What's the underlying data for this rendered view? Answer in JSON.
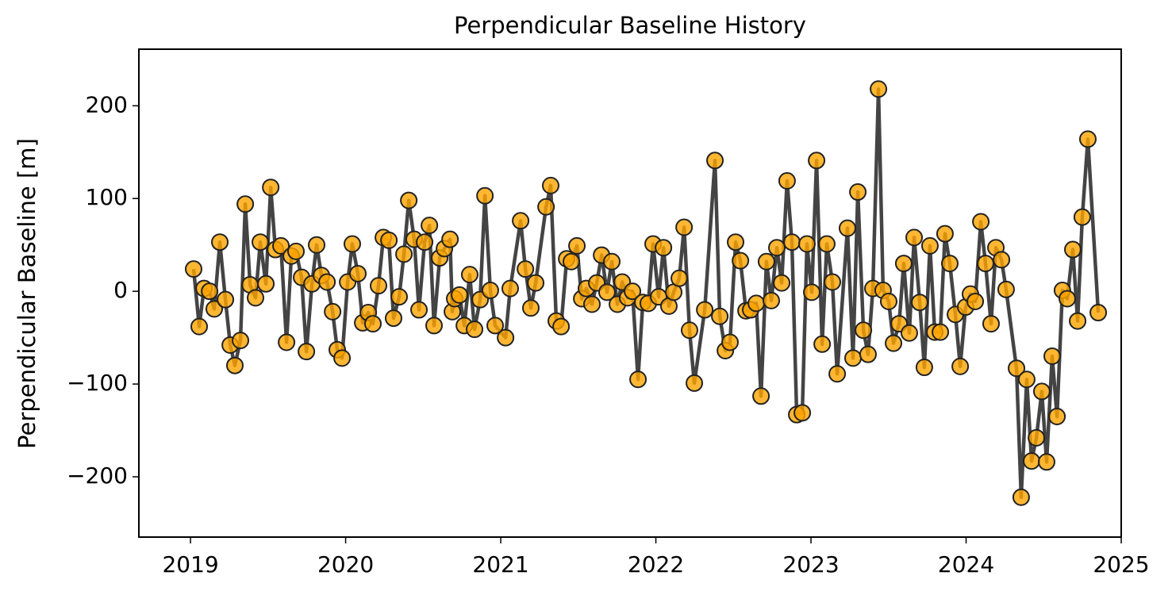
{
  "chart_data": {
    "type": "line",
    "title": "Perpendicular Baseline History",
    "ylabel": "Perpendicular Baseline [m]",
    "x": [
      2019.02,
      2019.056,
      2019.087,
      2019.123,
      2019.153,
      2019.189,
      2019.225,
      2019.256,
      2019.286,
      2019.322,
      2019.353,
      2019.384,
      2019.419,
      2019.45,
      2019.486,
      2019.517,
      2019.547,
      2019.583,
      2019.619,
      2019.65,
      2019.68,
      2019.716,
      2019.747,
      2019.783,
      2019.813,
      2019.844,
      2019.88,
      2019.916,
      2019.946,
      2019.977,
      2020.013,
      2020.043,
      2020.079,
      2020.11,
      2020.146,
      2020.176,
      2020.212,
      2020.243,
      2020.279,
      2020.309,
      2020.345,
      2020.376,
      2020.407,
      2020.442,
      2020.473,
      2020.509,
      2020.54,
      2020.57,
      2020.606,
      2020.637,
      2020.673,
      2020.688,
      2020.703,
      2020.734,
      2020.765,
      2020.8,
      2020.831,
      2020.867,
      2020.898,
      2020.933,
      2020.964,
      2021.031,
      2021.061,
      2021.128,
      2021.159,
      2021.194,
      2021.225,
      2021.292,
      2021.322,
      2021.358,
      2021.389,
      2021.425,
      2021.455,
      2021.491,
      2021.522,
      2021.552,
      2021.588,
      2021.619,
      2021.65,
      2021.685,
      2021.716,
      2021.752,
      2021.783,
      2021.818,
      2021.849,
      2021.885,
      2021.916,
      2021.951,
      2021.982,
      2022.018,
      2022.049,
      2022.084,
      2022.115,
      2022.151,
      2022.182,
      2022.217,
      2022.248,
      2022.315,
      2022.381,
      2022.412,
      2022.448,
      2022.478,
      2022.514,
      2022.545,
      2022.581,
      2022.611,
      2022.647,
      2022.678,
      2022.713,
      2022.744,
      2022.78,
      2022.811,
      2022.846,
      2022.877,
      2022.908,
      2022.944,
      2022.974,
      2023.005,
      2023.036,
      2023.072,
      2023.102,
      2023.138,
      2023.169,
      2023.235,
      2023.271,
      2023.302,
      2023.338,
      2023.368,
      2023.399,
      2023.435,
      2023.465,
      2023.501,
      2023.532,
      2023.568,
      2023.598,
      2023.634,
      2023.665,
      2023.701,
      2023.731,
      2023.767,
      2023.798,
      2023.834,
      2023.864,
      2023.895,
      2023.931,
      2023.962,
      2023.997,
      2024.028,
      2024.059,
      2024.095,
      2024.125,
      2024.161,
      2024.192,
      2024.228,
      2024.258,
      2024.325,
      2024.355,
      2024.391,
      2024.422,
      2024.453,
      2024.488,
      2024.519,
      2024.555,
      2024.586,
      2024.621,
      2024.652,
      2024.688,
      2024.719,
      2024.749,
      2024.785,
      2024.852
    ],
    "series": [
      {
        "color": "#ffa500",
        "values": [
          24,
          -38,
          3,
          0,
          -19,
          53,
          -9,
          -58,
          -80,
          -53,
          94,
          7,
          -7,
          53,
          8,
          112,
          45,
          49,
          -55,
          38,
          43,
          15,
          -65,
          8,
          50,
          17,
          10,
          -22,
          -63,
          -72,
          10,
          51,
          19,
          -34,
          -23,
          -35,
          6,
          58,
          55,
          -29,
          -6,
          40,
          98,
          56,
          -20,
          53,
          71,
          -37,
          36,
          46,
          56,
          -22,
          -8,
          -4,
          -37,
          18,
          -41,
          -9,
          103,
          1,
          -37,
          -50,
          3,
          76,
          24,
          -18,
          9,
          91,
          114,
          -32,
          -38,
          35,
          32,
          49,
          -8,
          3,
          -14,
          9,
          39,
          -1,
          32,
          -14,
          10,
          -7,
          0,
          -95,
          -12,
          -13,
          51,
          -6,
          47,
          -16,
          -1,
          14,
          69,
          -42,
          -99,
          -20,
          141,
          -27,
          -64,
          -55,
          53,
          33,
          -21,
          -20,
          -13,
          -113,
          32,
          -10,
          47,
          9,
          119,
          53,
          -133,
          -131,
          51,
          -1,
          141,
          -57,
          51,
          10,
          -89,
          68,
          -72,
          107,
          -42,
          -68,
          3,
          218,
          1,
          -11,
          -56,
          -35,
          30,
          -45,
          58,
          -12,
          -82,
          49,
          -44,
          -44,
          62,
          30,
          -25,
          -81,
          -17,
          -3,
          -11,
          75,
          30,
          -35,
          47,
          34,
          2,
          -83,
          -222,
          -95,
          -183,
          -158,
          -108,
          -184,
          -70,
          -135,
          1,
          -8,
          45,
          -32,
          80,
          164,
          -23
        ]
      }
    ],
    "xlim": [
      2018.667,
      2025
    ],
    "xticks": [
      2019,
      2020,
      2021,
      2022,
      2023,
      2024,
      2025
    ],
    "ylim": [
      -265,
      261
    ],
    "yticks": [
      {
        "value": -200,
        "label": "−200"
      },
      {
        "value": -100,
        "label": "−100"
      },
      0,
      100,
      200
    ]
  }
}
